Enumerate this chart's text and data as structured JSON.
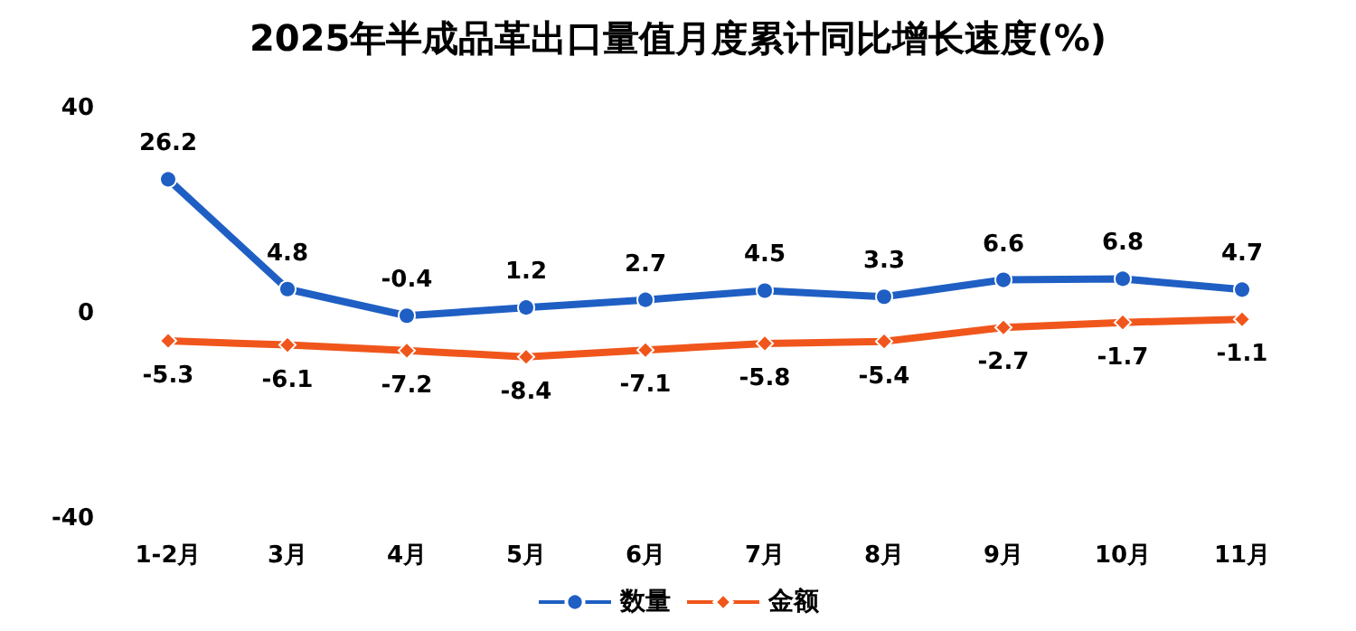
{
  "chart_data": {
    "type": "line",
    "title": "2025年半成品革出口量值月度累计同比增长速度(%)",
    "categories": [
      "1-2月",
      "3月",
      "4月",
      "5月",
      "6月",
      "7月",
      "8月",
      "9月",
      "10月",
      "11月"
    ],
    "series": [
      {
        "name": "数量",
        "color": "#1f5fc4",
        "marker": "circle",
        "values": [
          26.2,
          4.8,
          -0.4,
          1.2,
          2.7,
          4.5,
          3.3,
          6.6,
          6.8,
          4.7
        ]
      },
      {
        "name": "金额",
        "color": "#f0561c",
        "marker": "diamond",
        "values": [
          -5.3,
          -6.1,
          -7.2,
          -8.4,
          -7.1,
          -5.8,
          -5.4,
          -2.7,
          -1.7,
          -1.1
        ]
      }
    ],
    "ylim": [
      -40,
      40
    ],
    "yticks": [
      -40,
      0,
      40
    ],
    "grid": false,
    "legend": "bottom",
    "data_labels": true
  }
}
